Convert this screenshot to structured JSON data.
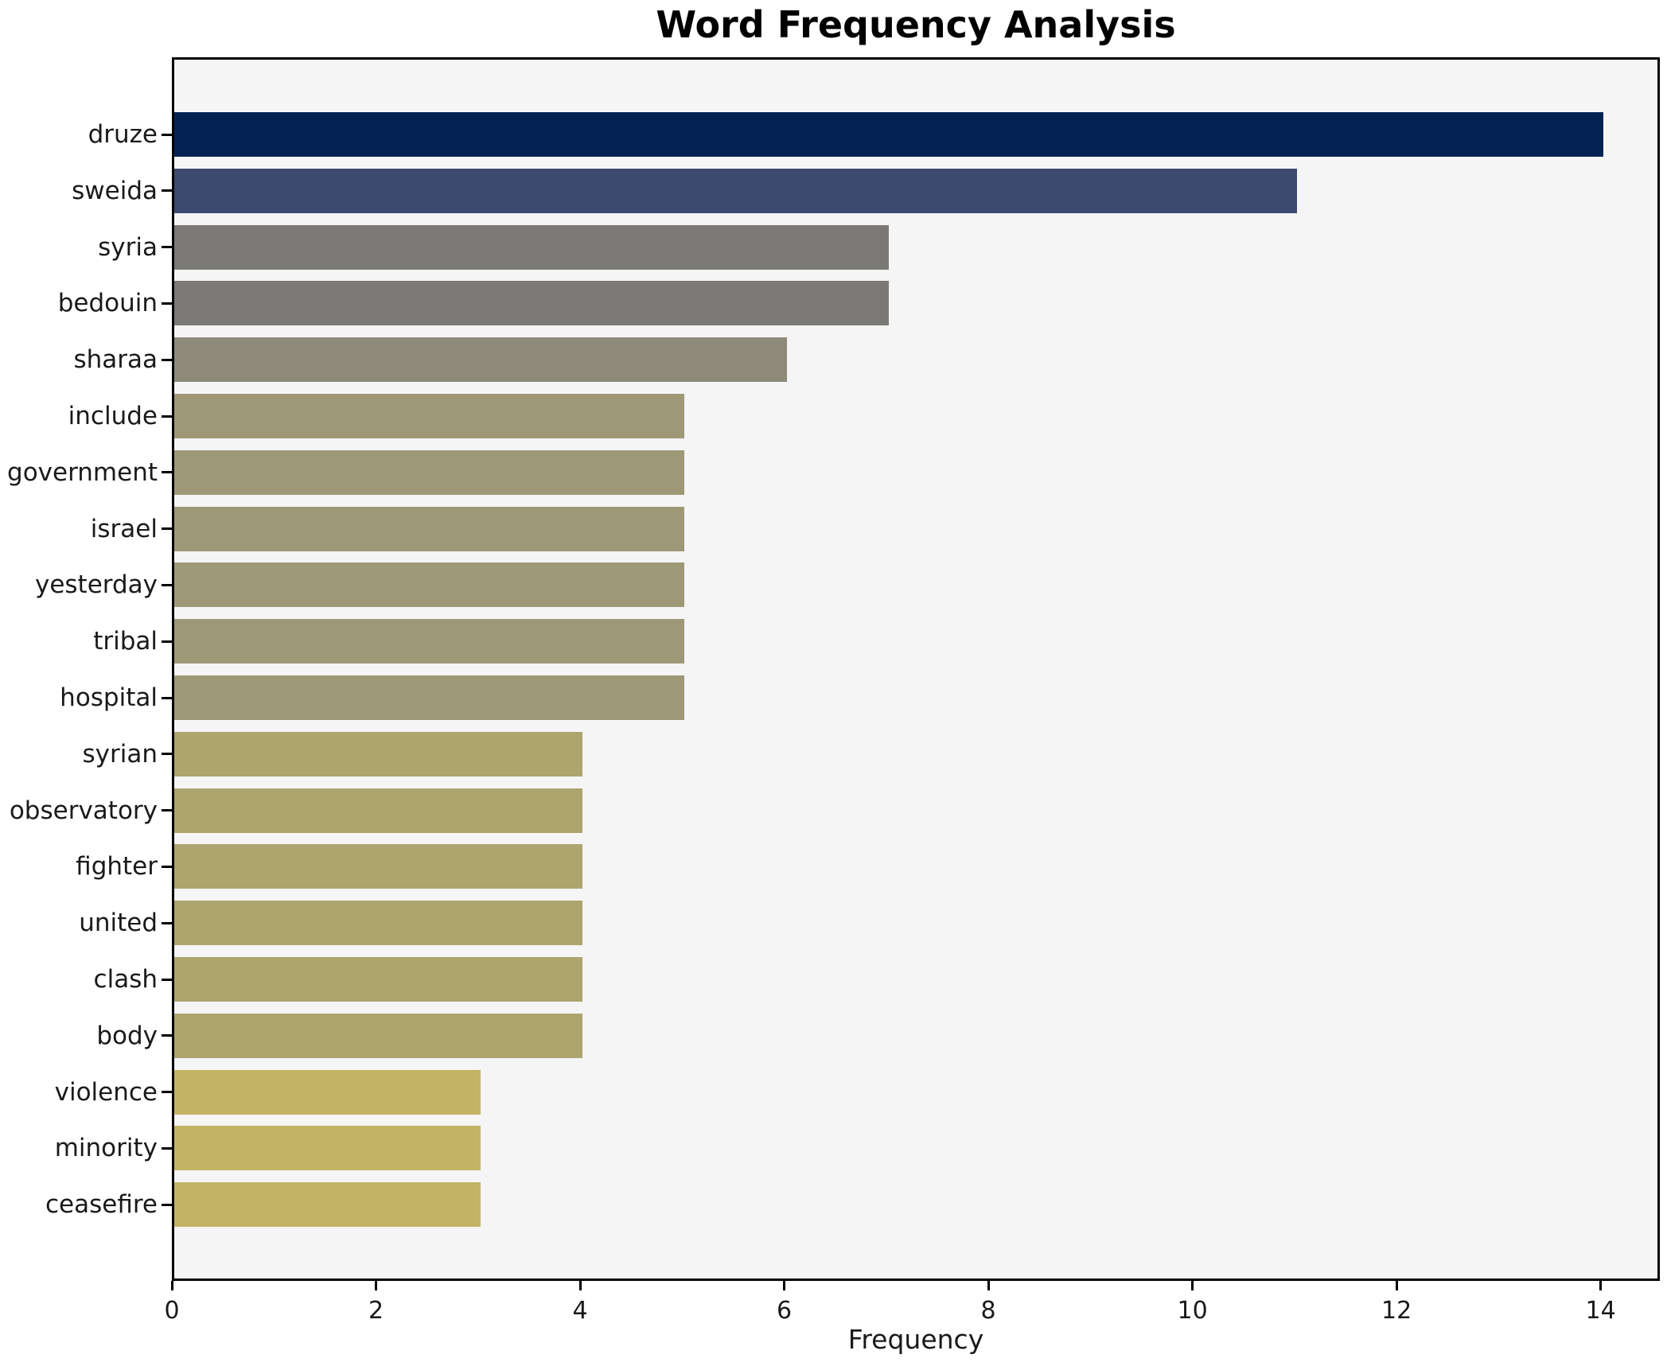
{
  "title": "Word Frequency Analysis",
  "chart_data": {
    "type": "bar",
    "orientation": "horizontal",
    "title": "Word Frequency Analysis",
    "xlabel": "Frequency",
    "ylabel": "",
    "categories": [
      "druze",
      "sweida",
      "syria",
      "bedouin",
      "sharaa",
      "include",
      "government",
      "israel",
      "yesterday",
      "tribal",
      "hospital",
      "syrian",
      "observatory",
      "fighter",
      "united",
      "clash",
      "body",
      "violence",
      "minority",
      "ceasefire"
    ],
    "values": [
      14,
      11,
      7,
      7,
      6,
      5,
      5,
      5,
      5,
      5,
      5,
      4,
      4,
      4,
      4,
      4,
      4,
      3,
      3,
      3
    ],
    "bar_colors": [
      "#022352",
      "#3c4a70",
      "#7a7976",
      "#7a7976",
      "#8e8a7a",
      "#9e9877",
      "#9e9877",
      "#9e9877",
      "#9e9877",
      "#9e9877",
      "#9e9877",
      "#aea46e",
      "#aea46e",
      "#aea46e",
      "#aea46e",
      "#aea46e",
      "#aea46e",
      "#c3b364",
      "#c3b364",
      "#c3b364"
    ],
    "xticks": [
      0,
      2,
      4,
      6,
      8,
      10,
      12,
      14
    ],
    "xlim": [
      0,
      14.58
    ],
    "grid": false,
    "legend": null,
    "plot_bg": "#f5f5f6",
    "page_bg": "#ffffff",
    "axis_color": "#000000",
    "text_color": "#1a1a1a"
  }
}
